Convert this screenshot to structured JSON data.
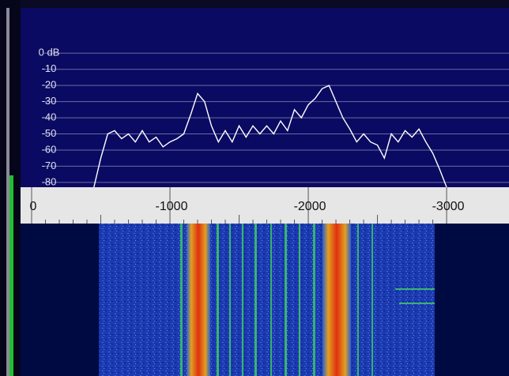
{
  "chart_data": {
    "type": "line",
    "xlim": [
      80,
      -3451
    ],
    "ylim": [
      -83,
      28
    ],
    "xticks": [
      0,
      -1000,
      -2000,
      -3000
    ],
    "yticks": [
      {
        "value": 0,
        "label": "0 dB"
      },
      -10,
      -20,
      -30,
      -40,
      -50,
      -60,
      -70,
      -80
    ],
    "grid": true,
    "color": "#ffffff",
    "x": [
      -450,
      -500,
      -550,
      -600,
      -650,
      -700,
      -750,
      -800,
      -850,
      -900,
      -950,
      -1000,
      -1050,
      -1100,
      -1150,
      -1200,
      -1250,
      -1300,
      -1350,
      -1400,
      -1450,
      -1500,
      -1550,
      -1600,
      -1650,
      -1700,
      -1750,
      -1800,
      -1850,
      -1900,
      -1950,
      -2000,
      -2050,
      -2100,
      -2150,
      -2200,
      -2250,
      -2300,
      -2350,
      -2400,
      -2450,
      -2500,
      -2550,
      -2600,
      -2650,
      -2700,
      -2750,
      -2800,
      -2850,
      -2900,
      -2950,
      -3000
    ],
    "values": [
      -83,
      -65,
      -50,
      -48,
      -53,
      -50,
      -55,
      -48,
      -55,
      -52,
      -58,
      -55,
      -53,
      -50,
      -38,
      -25,
      -30,
      -45,
      -55,
      -48,
      -55,
      -45,
      -52,
      -45,
      -50,
      -45,
      -50,
      -42,
      -48,
      -35,
      -40,
      -32,
      -28,
      -22,
      -20,
      -30,
      -40,
      -47,
      -55,
      -50,
      -55,
      -57,
      -65,
      -50,
      -55,
      -48,
      -52,
      -47,
      -55,
      -62,
      -72,
      -83
    ]
  }
}
